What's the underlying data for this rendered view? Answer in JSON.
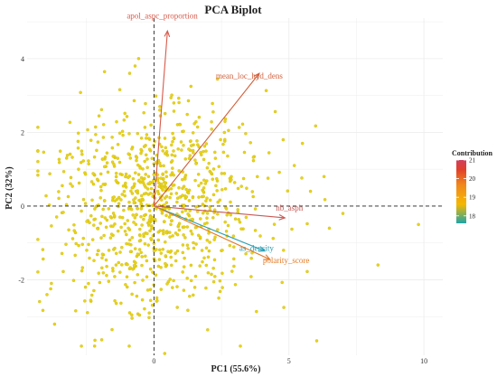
{
  "chart_data": {
    "type": "scatter",
    "title": "PCA Biplot",
    "xlabel": "PC1 (55.6%)",
    "ylabel": "PC2 (32%)",
    "xlim": [
      -4.7,
      10.7
    ],
    "ylim": [
      -4.05,
      5.1
    ],
    "xticks": [
      0,
      5,
      10
    ],
    "yticks": [
      -2,
      0,
      2,
      4
    ],
    "grid": true,
    "point_color": "#e8d317",
    "zero_lines": "dashed",
    "vectors": [
      {
        "name": "apol_aspc_proportion",
        "x": 0.5,
        "y": 4.75,
        "contribution": 20.8,
        "color": "#d85a4a"
      },
      {
        "name": "mean_loc_hyd_dens",
        "x": 3.9,
        "y": 3.6,
        "contribution": 20.3,
        "color": "#d0603c"
      },
      {
        "name": "nb_asph",
        "x": 4.85,
        "y": -0.32,
        "contribution": 20.1,
        "color": "#c85a55"
      },
      {
        "name": "as_density",
        "x": 4.1,
        "y": -1.22,
        "contribution": 17.9,
        "color": "#2a9fb4"
      },
      {
        "name": "polarity_score",
        "x": 4.3,
        "y": -1.45,
        "contribution": 18.7,
        "color": "#e27a25"
      }
    ],
    "legend": {
      "title": "Contribution",
      "position": "right",
      "min": 17.6,
      "max": 21.0,
      "ticks": [
        18,
        19,
        20,
        21
      ],
      "colors": [
        "#1fa5a8",
        "#f5b800",
        "#f08a1c",
        "#e0402a",
        "#d0405e"
      ]
    }
  }
}
